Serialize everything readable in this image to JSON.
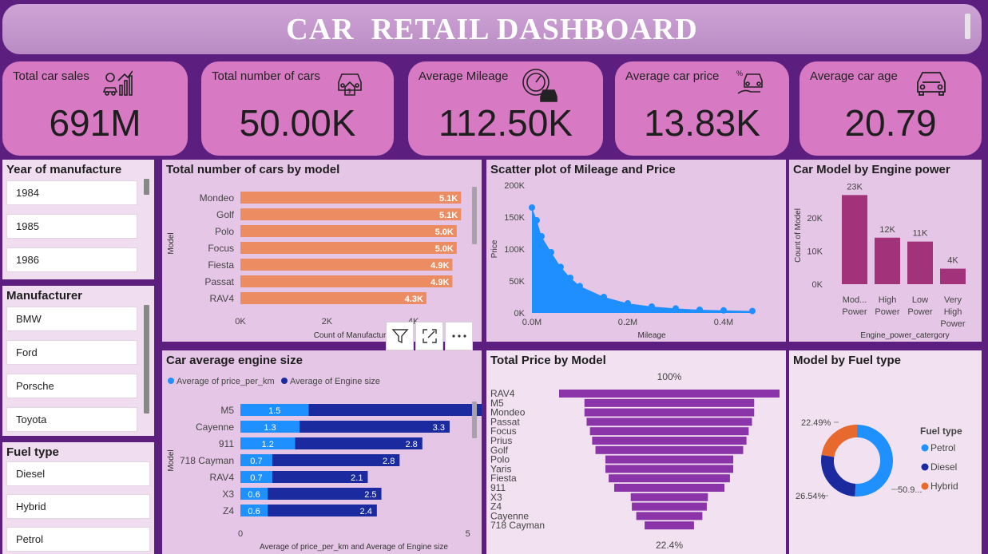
{
  "title": "CAR  RETAIL DASHBOARD",
  "kpis": [
    {
      "label": "Total car sales",
      "value": "691M",
      "icon": "car-sales-growth-icon"
    },
    {
      "label": "Total number of cars",
      "value": "50.00K",
      "icon": "car-money-icon"
    },
    {
      "label": "Average Mileage",
      "value": "112.50K",
      "icon": "speedometer-car-icon"
    },
    {
      "label": "Average car price",
      "value": "13.83K",
      "icon": "car-price-hand-icon"
    },
    {
      "label": "Average car age",
      "value": "20.79",
      "icon": "car-front-icon"
    }
  ],
  "slicers": {
    "year": {
      "title": "Year of manufacture",
      "items": [
        "1984",
        "1985",
        "1986"
      ]
    },
    "manufacturer": {
      "title": "Manufacturer",
      "items": [
        "BMW",
        "Ford",
        "Porsche",
        "Toyota"
      ]
    },
    "fuel": {
      "title": "Fuel type",
      "items": [
        "Diesel",
        "Hybrid",
        "Petrol"
      ]
    }
  },
  "toolbar": {
    "filter": "filter-icon",
    "focus": "focus-mode-icon",
    "more": "more-options-icon"
  },
  "colors": {
    "bg": "#5c1f80",
    "kpi": "#d879c4",
    "orange_bar": "#ec8c62",
    "scatter": "#1f8fff",
    "purple_bar": "#a2327a",
    "funnel": "#8b33a8",
    "petrol": "#1e90ff",
    "diesel": "#1c2aa0",
    "hybrid": "#e8692e"
  },
  "chart_data": [
    {
      "id": "cars_by_model",
      "type": "bar",
      "title": "Total number of cars by model",
      "ylabel": "Model",
      "xlabel": "Count of Manufactur",
      "categories": [
        "Mondeo",
        "Golf",
        "Polo",
        "Focus",
        "Fiesta",
        "Passat",
        "RAV4"
      ],
      "values": [
        5100,
        5100,
        5000,
        5000,
        4900,
        4900,
        4300
      ],
      "labels": [
        "5.1K",
        "5.1K",
        "5.0K",
        "5.0K",
        "4.9K",
        "4.9K",
        "4.3K"
      ],
      "xticks": [
        "0K",
        "2K",
        "4K"
      ],
      "xlim": [
        0,
        6000
      ]
    },
    {
      "id": "scatter_mileage_price",
      "type": "scatter",
      "title": "Scatter plot of Mileage and Price",
      "xlabel": "Mileage",
      "ylabel": "Price",
      "xticks": [
        "0.0M",
        "0.2M",
        "0.4M"
      ],
      "yticks": [
        "0K",
        "50K",
        "100K",
        "150K",
        "200K"
      ],
      "xlim": [
        0,
        0.5
      ],
      "ylim": [
        0,
        200000
      ],
      "envelope_x": [
        0.0,
        0.01,
        0.02,
        0.04,
        0.06,
        0.08,
        0.1,
        0.15,
        0.2,
        0.25,
        0.3,
        0.35,
        0.4,
        0.46
      ],
      "envelope_y": [
        165000,
        145000,
        120000,
        95000,
        72000,
        55000,
        42000,
        25000,
        15000,
        10000,
        7000,
        5000,
        4000,
        3000
      ]
    },
    {
      "id": "engine_power",
      "type": "bar",
      "title": "Car Model by Engine power",
      "xlabel": "Engine_power_catergory",
      "ylabel": "Count of Model",
      "categories": [
        "Mod... Power",
        "High Power",
        "Low Power",
        "Very High Power"
      ],
      "values": [
        23000,
        12000,
        11000,
        4000
      ],
      "labels": [
        "23K",
        "12K",
        "11K",
        "4K"
      ],
      "yticks": [
        "0K",
        "10K",
        "20K"
      ],
      "ylim": [
        0,
        27000
      ]
    },
    {
      "id": "avg_engine_size",
      "type": "bar",
      "title": "Car average engine size",
      "ylabel": "Model",
      "xlabel": "Average of price_per_km and Average of Engine size",
      "series": [
        {
          "name": "Average of price_per_km",
          "values": [
            1.5,
            1.3,
            1.2,
            0.7,
            0.7,
            0.6,
            0.6
          ]
        },
        {
          "name": "Average of Engine size",
          "values": [
            4.5,
            3.3,
            2.8,
            2.8,
            2.1,
            2.5,
            2.4
          ]
        }
      ],
      "categories": [
        "M5",
        "Cayenne",
        "911",
        "718 Cayman",
        "RAV4",
        "X3",
        "Z4"
      ],
      "xticks": [
        "0",
        "5"
      ],
      "xlim": [
        0,
        5.9
      ]
    },
    {
      "id": "total_price_by_model",
      "type": "bar",
      "title": "Total Price by Model",
      "categories": [
        "RAV4",
        "M5",
        "Mondeo",
        "Passat",
        "Focus",
        "Prius",
        "Golf",
        "Polo",
        "Yaris",
        "Fiesta",
        "911",
        "X3",
        "Z4",
        "Cayenne",
        "718 Cayman"
      ],
      "values": [
        100,
        77,
        77,
        75,
        72,
        70,
        67,
        58,
        58,
        55,
        50,
        35,
        34,
        30,
        22.4
      ],
      "top_label": "100%",
      "bottom_label": "22.4%"
    },
    {
      "id": "model_by_fuel",
      "type": "pie",
      "title": "Model by Fuel type",
      "legend_title": "Fuel type",
      "categories": [
        "Petrol",
        "Diesel",
        "Hybrid"
      ],
      "values": [
        50.97,
        26.54,
        22.49
      ],
      "labels": [
        "50.9...",
        "26.54%",
        "22.49%"
      ]
    }
  ]
}
